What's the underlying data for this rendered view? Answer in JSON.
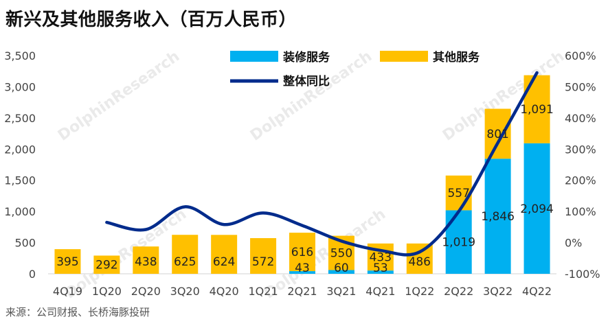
{
  "title": "新兴及其他服务收入（百万人民币）",
  "source": "来源：公司财报、长桥海豚投研",
  "watermark": "DolphinResearch",
  "chart_data": {
    "type": "bar",
    "stacked": true,
    "categories": [
      "4Q19",
      "1Q20",
      "2Q20",
      "3Q20",
      "4Q20",
      "1Q21",
      "2Q21",
      "3Q21",
      "4Q21",
      "1Q22",
      "2Q22",
      "3Q22",
      "4Q22"
    ],
    "series": [
      {
        "name": "装修服务",
        "color": "#00B0F0",
        "values": [
          0,
          0,
          0,
          0,
          0,
          0,
          43,
          60,
          53,
          0,
          1019,
          1846,
          2094
        ],
        "labels": [
          "",
          "",
          "",
          "",
          "",
          "",
          "43",
          "60",
          "53",
          "",
          "1,019",
          "1,846",
          "2,094"
        ]
      },
      {
        "name": "其他服务",
        "color": "#FFC000",
        "values": [
          395,
          292,
          438,
          625,
          624,
          572,
          616,
          550,
          433,
          486,
          557,
          801,
          1091
        ],
        "labels": [
          "395",
          "292",
          "438",
          "625",
          "624",
          "572",
          "616",
          "550",
          "433",
          "486",
          "557",
          "801",
          "1,091"
        ]
      }
    ],
    "line": {
      "name": "整体同比",
      "color": "#002B8C",
      "axis": "right",
      "values": [
        null,
        65,
        42,
        115,
        58,
        95,
        55,
        5,
        -25,
        -30,
        100,
        320,
        545
      ]
    },
    "left_axis": {
      "min": 0,
      "max": 3500,
      "ticks": [
        "0",
        "500",
        "1,000",
        "1,500",
        "2,000",
        "2,500",
        "3,000",
        "3,500"
      ]
    },
    "right_axis": {
      "min": -100,
      "max": 600,
      "ticks": [
        "-100%",
        "0%",
        "100%",
        "200%",
        "300%",
        "400%",
        "500%",
        "600%"
      ]
    },
    "legend_position": "top"
  }
}
